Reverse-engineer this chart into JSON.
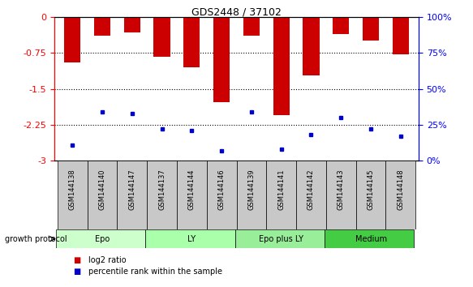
{
  "title": "GDS2448 / 37102",
  "samples": [
    "GSM144138",
    "GSM144140",
    "GSM144147",
    "GSM144137",
    "GSM144144",
    "GSM144146",
    "GSM144139",
    "GSM144141",
    "GSM144142",
    "GSM144143",
    "GSM144145",
    "GSM144148"
  ],
  "log2_ratio": [
    -0.95,
    -0.38,
    -0.32,
    -0.82,
    -1.05,
    -1.78,
    -0.38,
    -2.05,
    -1.22,
    -0.35,
    -0.48,
    -0.78
  ],
  "percentile_rank": [
    11,
    34,
    33,
    22,
    21,
    7,
    34,
    8,
    18,
    30,
    22,
    17
  ],
  "bar_color": "#cc0000",
  "dot_color": "#0000cc",
  "ylim_left": [
    -3,
    0
  ],
  "ylim_right": [
    0,
    100
  ],
  "yticks_left": [
    0,
    -0.75,
    -1.5,
    -2.25,
    -3
  ],
  "yticks_right": [
    0,
    25,
    50,
    75,
    100
  ],
  "groups": [
    {
      "label": "Epo",
      "start": 0,
      "end": 3,
      "color": "#ccffcc"
    },
    {
      "label": "LY",
      "start": 3,
      "end": 6,
      "color": "#aaffaa"
    },
    {
      "label": "Epo plus LY",
      "start": 6,
      "end": 9,
      "color": "#99ee99"
    },
    {
      "label": "Medium",
      "start": 9,
      "end": 12,
      "color": "#44cc44"
    }
  ],
  "growth_protocol_label": "growth protocol",
  "legend_items": [
    {
      "label": "log2 ratio",
      "color": "#cc0000"
    },
    {
      "label": "percentile rank within the sample",
      "color": "#0000cc"
    }
  ],
  "bar_width": 0.55
}
